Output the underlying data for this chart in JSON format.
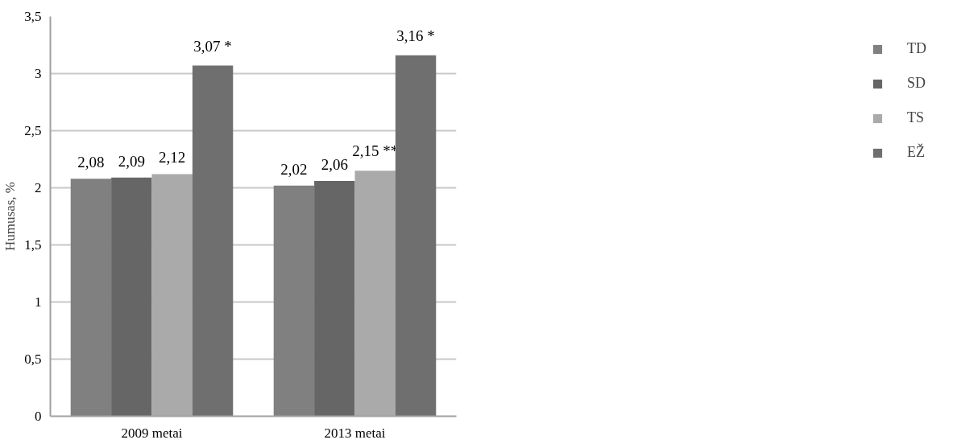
{
  "chart_data": {
    "type": "bar",
    "ylabel": "Humusas, %",
    "categories": [
      "2009 metai",
      "2013 metai"
    ],
    "series": [
      {
        "name": "TD",
        "color": "#808080",
        "values": [
          2.08,
          2.02
        ],
        "value_labels": [
          "2,08",
          "2,02"
        ]
      },
      {
        "name": "SD",
        "color": "#666666",
        "values": [
          2.09,
          2.06
        ],
        "value_labels": [
          "2,09",
          "2,06"
        ]
      },
      {
        "name": "TS",
        "color": "#aaaaaa",
        "values": [
          2.12,
          2.15
        ],
        "value_labels": [
          "2,12",
          "2,15 **"
        ]
      },
      {
        "name": "EŽ",
        "color": "#6f6f6f",
        "values": [
          3.07,
          3.16
        ],
        "value_labels": [
          "3,07 *",
          "3,16 *"
        ]
      }
    ],
    "ylim": [
      0,
      3.5
    ],
    "yticks": [
      0,
      {
        "value": 0.5,
        "label": "0,5"
      },
      1,
      {
        "value": 1.5,
        "label": "1,5"
      },
      2,
      {
        "value": 2.5,
        "label": "2,5"
      },
      3,
      {
        "value": 3.5,
        "label": "3,5"
      }
    ],
    "grid": "y",
    "legend": "right"
  }
}
